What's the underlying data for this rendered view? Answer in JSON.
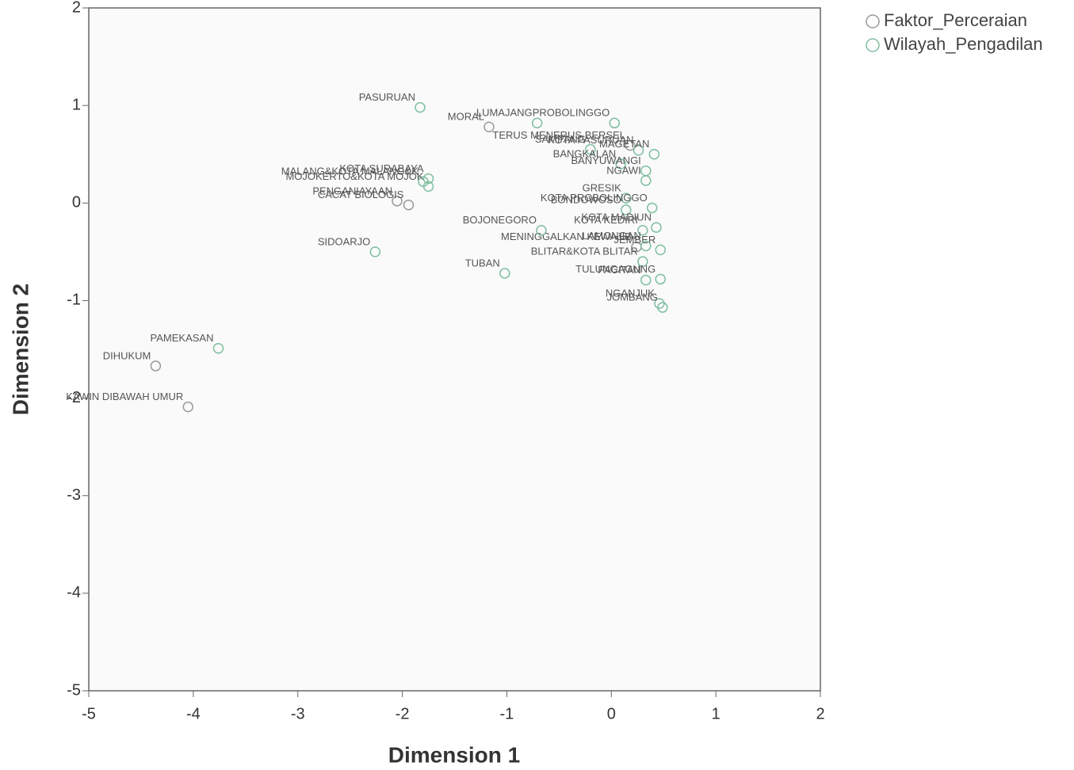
{
  "chart_data": {
    "type": "scatter",
    "xlabel": "Dimension 1",
    "ylabel": "Dimension 2",
    "xlim": [
      -5,
      2
    ],
    "ylim": [
      -5,
      2
    ],
    "xticks": [
      -5,
      -4,
      -3,
      -2,
      -1,
      0,
      1,
      2
    ],
    "yticks": [
      -5,
      -4,
      -3,
      -2,
      -1,
      0,
      1,
      2
    ],
    "legend": "upper right",
    "series": [
      {
        "name": "Faktor_Perceraian",
        "color": "#9a9a9a",
        "labels": [
          "MORAL",
          "TERUS MENERUS BERSEL",
          "PENGANIAYAAN",
          "CACAT BIOLOGIS",
          "MENINGGALKAN KEWAJIB",
          "DIHUKUM",
          "KAWIN DIBAWAH UMUR"
        ],
        "x": [
          -1.17,
          0.18,
          -2.05,
          -1.94,
          0.24,
          -4.36,
          -4.05
        ],
        "y": [
          0.78,
          0.59,
          0.02,
          -0.02,
          -0.45,
          -1.67,
          -2.09
        ]
      },
      {
        "name": "Wilayah_Pengadilan",
        "color": "#7fbf9f",
        "labels": [
          "PASURUAN",
          "LUMAJANG",
          "PROBOLINGGO",
          "KOTA PASURUAN",
          "KOTA SURABAYA",
          "SAMPANG",
          "MAGETAN",
          "MALANG&KOTA MALANG&K",
          "BANGKALAN",
          "BANYUWANGI",
          "MOJOKERTO&KOTA MOJOK",
          "NGAWI",
          "GRESIK",
          "BONDOWOSO",
          "KOTA PROBOLINGGO",
          "BOJONEGORO",
          "KOTA KEDIRI",
          "KOTA MADIUN",
          "SIDOARJO",
          "JEMBER",
          "LAMONGAN",
          "BLITAR&KOTA BLITAR",
          "TULUNGAGUNG",
          "TUBAN",
          "PACITAN",
          "NGANJUK",
          "JOMBANG",
          "PAMEKASAN"
        ],
        "x": [
          -1.83,
          -0.71,
          0.03,
          0.26,
          -1.75,
          -0.2,
          0.41,
          -1.8,
          0.09,
          0.33,
          -1.75,
          0.33,
          0.14,
          0.14,
          0.39,
          -0.67,
          0.3,
          0.43,
          -2.26,
          0.47,
          0.33,
          0.3,
          0.47,
          -1.02,
          0.33,
          0.46,
          0.49,
          -3.76
        ],
        "y": [
          0.98,
          0.82,
          0.82,
          0.54,
          0.25,
          0.55,
          0.5,
          0.22,
          0.4,
          0.33,
          0.17,
          0.23,
          0.05,
          -0.07,
          -0.05,
          -0.28,
          -0.28,
          -0.25,
          -0.5,
          -0.48,
          -0.44,
          -0.6,
          -0.78,
          -0.72,
          -0.79,
          -1.03,
          -1.07,
          -1.49
        ]
      }
    ]
  }
}
